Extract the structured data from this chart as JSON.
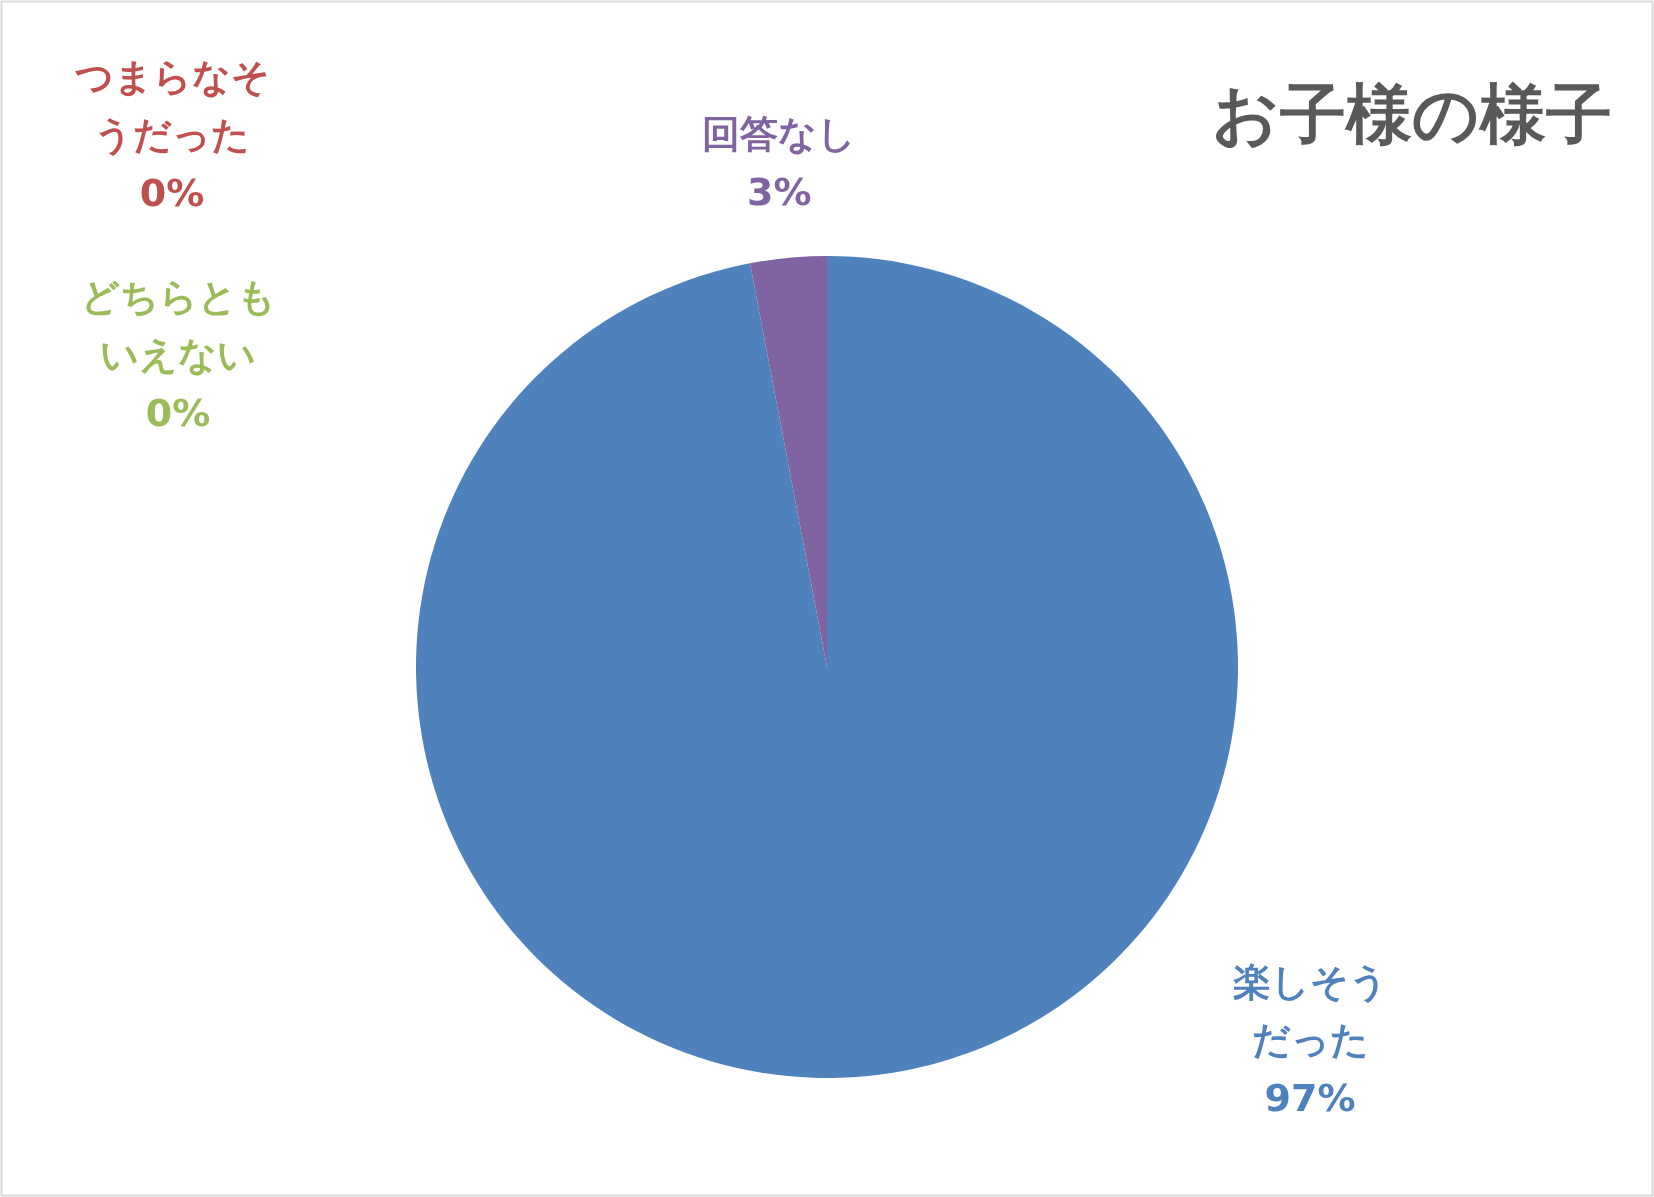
{
  "chart_data": {
    "type": "pie",
    "title": "お子様の様子",
    "categories": [
      "楽しそうだった",
      "つまらなそうだった",
      "どちらともいえない",
      "回答なし"
    ],
    "values": [
      97,
      0,
      0,
      3
    ],
    "colors": [
      "#4f81bd",
      "#c0504d",
      "#9bbb59",
      "#8064a2"
    ],
    "value_labels": [
      "97%",
      "0%",
      "0%",
      "3%"
    ],
    "legend": false
  }
}
